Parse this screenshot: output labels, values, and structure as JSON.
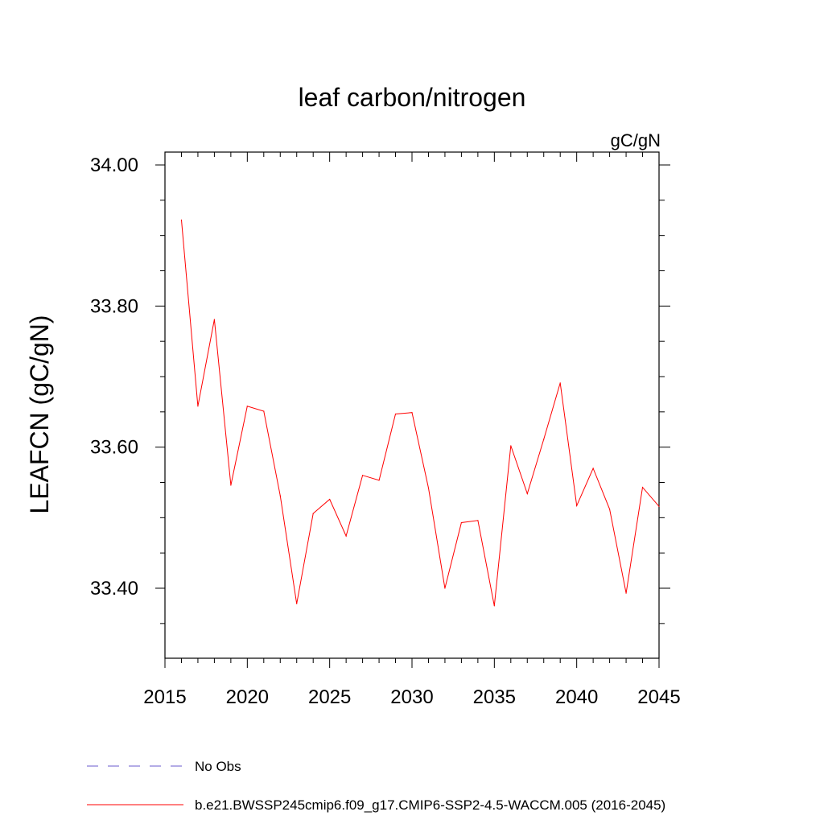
{
  "chart_data": {
    "type": "line",
    "title": "leaf carbon/nitrogen",
    "units": "gC/gN",
    "ylabel": "LEAFCN  (gC/gN)",
    "xlabel": "",
    "xlim": [
      2015,
      2045
    ],
    "ylim": [
      33.3,
      34.0
    ],
    "xticks": [
      2015,
      2020,
      2025,
      2030,
      2035,
      2040,
      2045
    ],
    "xtick_labels": [
      "2015",
      "2020",
      "2025",
      "2030",
      "2035",
      "2040",
      "2045"
    ],
    "yticks": [
      33.4,
      33.6,
      33.8,
      34.0
    ],
    "ytick_labels": [
      "33.40",
      "33.60",
      "33.80",
      "34.00"
    ],
    "series": [
      {
        "name": "b.e21.BWSSP245cmip6.f09_g17.CMIP6-SSP2-4.5-WACCM.005 (2016-2045)",
        "color": "#ff0000",
        "x": [
          2016,
          2017,
          2018,
          2019,
          2020,
          2021,
          2022,
          2023,
          2024,
          2025,
          2026,
          2027,
          2028,
          2029,
          2030,
          2031,
          2032,
          2033,
          2034,
          2035,
          2036,
          2037,
          2038,
          2039,
          2040,
          2041,
          2042,
          2043,
          2044,
          2045
        ],
        "values": [
          33.922,
          33.658,
          33.781,
          33.546,
          33.658,
          33.651,
          33.531,
          33.378,
          33.506,
          33.526,
          33.474,
          33.56,
          33.553,
          33.647,
          33.649,
          33.542,
          33.4,
          33.493,
          33.496,
          33.375,
          33.602,
          33.534,
          33.611,
          33.691,
          33.517,
          33.57,
          33.512,
          33.393,
          33.543,
          33.516
        ]
      }
    ],
    "legend": {
      "placement": "bottom-left",
      "entries": [
        {
          "label": "No Obs",
          "color": "#6a5acd",
          "style": "dashed"
        },
        {
          "label": "b.e21.BWSSP245cmip6.f09_g17.CMIP6-SSP2-4.5-WACCM.005 (2016-2045)",
          "color": "#ff0000",
          "style": "solid"
        }
      ]
    }
  }
}
